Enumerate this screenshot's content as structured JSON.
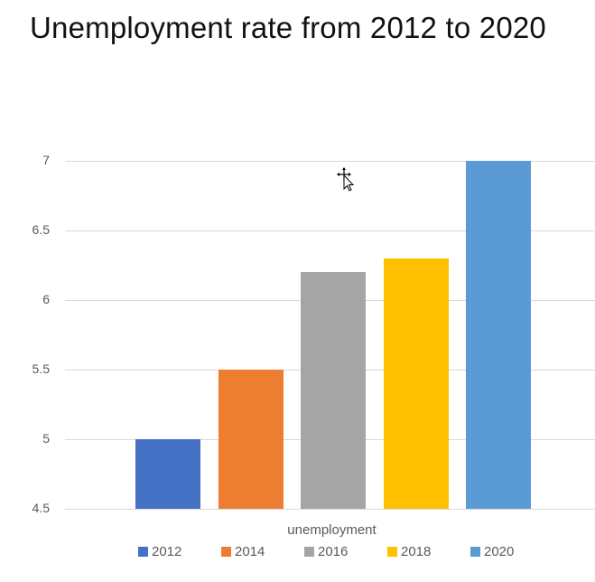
{
  "title": "Unemployment rate from 2012 to 2020",
  "chart_data": {
    "type": "bar",
    "title": "Unemployment rate from 2012 to 2020",
    "xlabel": "unemployment",
    "ylabel": "",
    "categories": [
      "unemployment"
    ],
    "series": [
      {
        "name": "2012",
        "values": [
          5.0
        ],
        "color": "#4472C4"
      },
      {
        "name": "2014",
        "values": [
          5.5
        ],
        "color": "#ED7D31"
      },
      {
        "name": "2016",
        "values": [
          6.2
        ],
        "color": "#A5A5A5"
      },
      {
        "name": "2018",
        "values": [
          6.3
        ],
        "color": "#FFC000"
      },
      {
        "name": "2020",
        "values": [
          7.0
        ],
        "color": "#5B9BD5"
      }
    ],
    "ylim": [
      4.5,
      7
    ],
    "yticks": [
      "4.5",
      "5",
      "5.5",
      "6",
      "6.5",
      "7"
    ],
    "grid": true,
    "legend_position": "bottom"
  },
  "axis": {
    "yticks": [
      "7",
      "6.5",
      "6",
      "5.5",
      "5",
      "4.5"
    ],
    "xlabel": "unemployment"
  },
  "legend": [
    "2012",
    "2014",
    "2016",
    "2018",
    "2020"
  ]
}
